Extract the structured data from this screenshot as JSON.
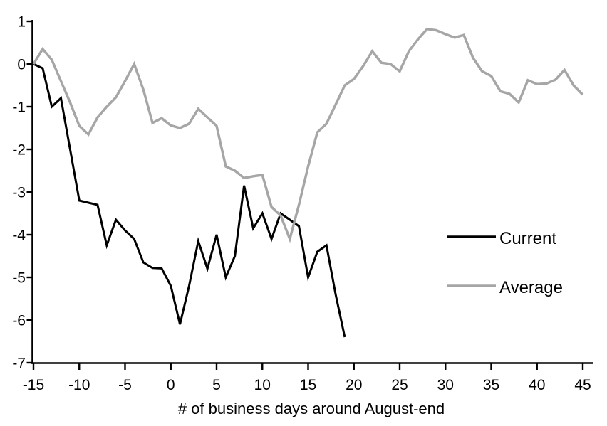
{
  "page": {
    "background": "#ffffff"
  },
  "chart_data": {
    "type": "line",
    "title": "",
    "xlabel": "# of business days around August-end",
    "ylabel": "",
    "xlim": [
      -15,
      45
    ],
    "ylim": [
      -7,
      1
    ],
    "xticks": [
      -15,
      -10,
      -5,
      0,
      5,
      10,
      15,
      20,
      25,
      30,
      35,
      40,
      45
    ],
    "yticks": [
      1,
      0,
      -1,
      -2,
      -3,
      -4,
      -5,
      -6,
      -7
    ],
    "grid": false,
    "legend_position": "right-middle",
    "axis_color": "#000000",
    "series": [
      {
        "name": "Current",
        "color": "#000000",
        "stroke_width": 3,
        "x": [
          -15,
          -14,
          -13,
          -12,
          -11,
          -10,
          -9,
          -8,
          -7,
          -6,
          -5,
          -4,
          -3,
          -2,
          -1,
          0,
          1,
          2,
          3,
          4,
          5,
          6,
          7,
          8,
          9,
          10,
          11,
          12,
          13,
          14,
          15,
          16,
          17,
          18,
          19
        ],
        "values": [
          0,
          -0.1,
          -1.0,
          -0.8,
          -2.0,
          -3.2,
          -3.25,
          -3.3,
          -4.25,
          -3.65,
          -3.9,
          -4.1,
          -4.65,
          -4.78,
          -4.79,
          -5.2,
          -6.1,
          -5.2,
          -4.15,
          -4.8,
          -4.0,
          -5.0,
          -4.5,
          -2.85,
          -3.85,
          -3.5,
          -4.1,
          -3.5,
          -3.65,
          -3.8,
          -5.0,
          -4.4,
          -4.25,
          -5.4,
          -6.4
        ]
      },
      {
        "name": "Average",
        "color": "#a6a6a6",
        "stroke_width": 3.5,
        "x": [
          -15,
          -14,
          -13,
          -12,
          -11,
          -10,
          -9,
          -8,
          -7,
          -6,
          -5,
          -4,
          -3,
          -2,
          -1,
          0,
          1,
          2,
          3,
          4,
          5,
          6,
          7,
          8,
          9,
          10,
          11,
          12,
          13,
          14,
          15,
          16,
          17,
          18,
          19,
          20,
          21,
          22,
          23,
          24,
          25,
          26,
          27,
          28,
          29,
          30,
          31,
          32,
          33,
          34,
          35,
          36,
          37,
          38,
          39,
          40,
          41,
          42,
          43,
          44,
          45
        ],
        "values": [
          0,
          0.35,
          0.1,
          -0.4,
          -0.9,
          -1.45,
          -1.65,
          -1.25,
          -1.0,
          -0.78,
          -0.4,
          0.0,
          -0.6,
          -1.38,
          -1.27,
          -1.44,
          -1.5,
          -1.4,
          -1.05,
          -1.25,
          -1.45,
          -2.4,
          -2.5,
          -2.67,
          -2.63,
          -2.6,
          -3.35,
          -3.55,
          -4.1,
          -3.3,
          -2.4,
          -1.6,
          -1.4,
          -0.95,
          -0.5,
          -0.35,
          -0.05,
          0.3,
          0.03,
          0.0,
          -0.17,
          0.3,
          0.58,
          0.82,
          0.79,
          0.7,
          0.62,
          0.68,
          0.15,
          -0.17,
          -0.28,
          -0.64,
          -0.7,
          -0.9,
          -0.38,
          -0.47,
          -0.46,
          -0.37,
          -0.14,
          -0.5,
          -0.72
        ]
      }
    ]
  },
  "legend": {
    "items": [
      {
        "label": "Current"
      },
      {
        "label": "Average"
      }
    ]
  }
}
